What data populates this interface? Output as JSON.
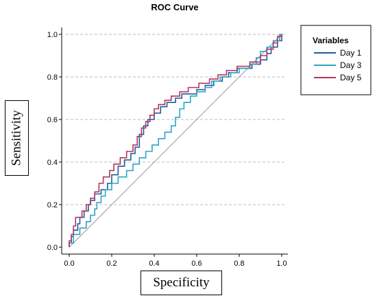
{
  "chart_data": {
    "type": "line",
    "title": "ROC Curve",
    "xlabel": "Specificity",
    "ylabel": "Sensitivity",
    "xlim": [
      0,
      1
    ],
    "ylim": [
      0,
      1
    ],
    "xticks": [
      "0.0",
      "0.2",
      "0.4",
      "0.6",
      "0.8",
      "1.0"
    ],
    "yticks": [
      "0.0",
      "0.2",
      "0.4",
      "0.6",
      "0.8",
      "1.0"
    ],
    "grid": "horizontal dashed",
    "legend": {
      "title": "Variables",
      "placement": "right"
    },
    "reference_line": {
      "from": [
        0,
        0
      ],
      "to": [
        1,
        1
      ]
    },
    "series": [
      {
        "name": "Day 1",
        "color": "#1f5c99",
        "points": [
          [
            0,
            0
          ],
          [
            0,
            0.02
          ],
          [
            0.01,
            0.02
          ],
          [
            0.01,
            0.05
          ],
          [
            0.02,
            0.05
          ],
          [
            0.02,
            0.08
          ],
          [
            0.04,
            0.08
          ],
          [
            0.04,
            0.11
          ],
          [
            0.05,
            0.11
          ],
          [
            0.05,
            0.14
          ],
          [
            0.07,
            0.14
          ],
          [
            0.07,
            0.17
          ],
          [
            0.09,
            0.17
          ],
          [
            0.09,
            0.2
          ],
          [
            0.1,
            0.2
          ],
          [
            0.1,
            0.22
          ],
          [
            0.12,
            0.22
          ],
          [
            0.12,
            0.25
          ],
          [
            0.15,
            0.25
          ],
          [
            0.15,
            0.27
          ],
          [
            0.18,
            0.27
          ],
          [
            0.18,
            0.3
          ],
          [
            0.2,
            0.3
          ],
          [
            0.2,
            0.34
          ],
          [
            0.23,
            0.34
          ],
          [
            0.23,
            0.38
          ],
          [
            0.26,
            0.38
          ],
          [
            0.26,
            0.41
          ],
          [
            0.29,
            0.41
          ],
          [
            0.29,
            0.44
          ],
          [
            0.31,
            0.44
          ],
          [
            0.31,
            0.47
          ],
          [
            0.33,
            0.47
          ],
          [
            0.33,
            0.53
          ],
          [
            0.35,
            0.53
          ],
          [
            0.35,
            0.57
          ],
          [
            0.37,
            0.57
          ],
          [
            0.37,
            0.6
          ],
          [
            0.4,
            0.6
          ],
          [
            0.4,
            0.63
          ],
          [
            0.43,
            0.63
          ],
          [
            0.43,
            0.66
          ],
          [
            0.46,
            0.66
          ],
          [
            0.46,
            0.68
          ],
          [
            0.5,
            0.68
          ],
          [
            0.5,
            0.7
          ],
          [
            0.53,
            0.7
          ],
          [
            0.53,
            0.72
          ],
          [
            0.6,
            0.72
          ],
          [
            0.6,
            0.74
          ],
          [
            0.64,
            0.74
          ],
          [
            0.64,
            0.76
          ],
          [
            0.68,
            0.76
          ],
          [
            0.68,
            0.78
          ],
          [
            0.72,
            0.78
          ],
          [
            0.72,
            0.8
          ],
          [
            0.75,
            0.8
          ],
          [
            0.75,
            0.82
          ],
          [
            0.79,
            0.82
          ],
          [
            0.79,
            0.84
          ],
          [
            0.86,
            0.84
          ],
          [
            0.86,
            0.86
          ],
          [
            0.9,
            0.86
          ],
          [
            0.9,
            0.88
          ],
          [
            0.93,
            0.88
          ],
          [
            0.93,
            0.91
          ],
          [
            0.95,
            0.91
          ],
          [
            0.95,
            0.94
          ],
          [
            0.98,
            0.94
          ],
          [
            0.98,
            0.97
          ],
          [
            1,
            0.97
          ],
          [
            1,
            1
          ]
        ]
      },
      {
        "name": "Day 3",
        "color": "#2aa5c9",
        "points": [
          [
            0,
            0
          ],
          [
            0,
            0.02
          ],
          [
            0.02,
            0.02
          ],
          [
            0.02,
            0.06
          ],
          [
            0.05,
            0.06
          ],
          [
            0.05,
            0.09
          ],
          [
            0.08,
            0.09
          ],
          [
            0.08,
            0.12
          ],
          [
            0.1,
            0.12
          ],
          [
            0.1,
            0.15
          ],
          [
            0.12,
            0.15
          ],
          [
            0.12,
            0.18
          ],
          [
            0.13,
            0.18
          ],
          [
            0.13,
            0.21
          ],
          [
            0.15,
            0.21
          ],
          [
            0.15,
            0.24
          ],
          [
            0.17,
            0.24
          ],
          [
            0.17,
            0.27
          ],
          [
            0.2,
            0.27
          ],
          [
            0.2,
            0.3
          ],
          [
            0.23,
            0.3
          ],
          [
            0.23,
            0.33
          ],
          [
            0.27,
            0.33
          ],
          [
            0.27,
            0.36
          ],
          [
            0.3,
            0.36
          ],
          [
            0.3,
            0.39
          ],
          [
            0.33,
            0.39
          ],
          [
            0.33,
            0.42
          ],
          [
            0.36,
            0.42
          ],
          [
            0.36,
            0.45
          ],
          [
            0.39,
            0.45
          ],
          [
            0.39,
            0.48
          ],
          [
            0.42,
            0.48
          ],
          [
            0.42,
            0.51
          ],
          [
            0.45,
            0.51
          ],
          [
            0.45,
            0.54
          ],
          [
            0.48,
            0.54
          ],
          [
            0.48,
            0.57
          ],
          [
            0.5,
            0.57
          ],
          [
            0.5,
            0.61
          ],
          [
            0.52,
            0.61
          ],
          [
            0.52,
            0.65
          ],
          [
            0.54,
            0.65
          ],
          [
            0.54,
            0.68
          ],
          [
            0.57,
            0.68
          ],
          [
            0.57,
            0.71
          ],
          [
            0.6,
            0.71
          ],
          [
            0.6,
            0.73
          ],
          [
            0.64,
            0.73
          ],
          [
            0.64,
            0.75
          ],
          [
            0.67,
            0.75
          ],
          [
            0.67,
            0.78
          ],
          [
            0.71,
            0.78
          ],
          [
            0.71,
            0.8
          ],
          [
            0.76,
            0.8
          ],
          [
            0.76,
            0.82
          ],
          [
            0.8,
            0.82
          ],
          [
            0.8,
            0.84
          ],
          [
            0.85,
            0.84
          ],
          [
            0.85,
            0.86
          ],
          [
            0.88,
            0.86
          ],
          [
            0.88,
            0.89
          ],
          [
            0.9,
            0.89
          ],
          [
            0.9,
            0.92
          ],
          [
            0.93,
            0.92
          ],
          [
            0.93,
            0.94
          ],
          [
            0.96,
            0.94
          ],
          [
            0.96,
            0.97
          ],
          [
            0.99,
            0.97
          ],
          [
            0.99,
            1
          ],
          [
            1,
            1
          ]
        ]
      },
      {
        "name": "Day 5",
        "color": "#b5335f",
        "points": [
          [
            0,
            0
          ],
          [
            0,
            0.03
          ],
          [
            0.01,
            0.03
          ],
          [
            0.01,
            0.06
          ],
          [
            0.02,
            0.06
          ],
          [
            0.02,
            0.1
          ],
          [
            0.03,
            0.1
          ],
          [
            0.03,
            0.14
          ],
          [
            0.06,
            0.14
          ],
          [
            0.06,
            0.17
          ],
          [
            0.08,
            0.17
          ],
          [
            0.08,
            0.2
          ],
          [
            0.1,
            0.2
          ],
          [
            0.1,
            0.23
          ],
          [
            0.12,
            0.23
          ],
          [
            0.12,
            0.26
          ],
          [
            0.14,
            0.26
          ],
          [
            0.14,
            0.3
          ],
          [
            0.16,
            0.3
          ],
          [
            0.16,
            0.33
          ],
          [
            0.19,
            0.33
          ],
          [
            0.19,
            0.36
          ],
          [
            0.21,
            0.36
          ],
          [
            0.21,
            0.39
          ],
          [
            0.24,
            0.39
          ],
          [
            0.24,
            0.42
          ],
          [
            0.27,
            0.42
          ],
          [
            0.27,
            0.45
          ],
          [
            0.3,
            0.45
          ],
          [
            0.3,
            0.48
          ],
          [
            0.32,
            0.48
          ],
          [
            0.32,
            0.52
          ],
          [
            0.34,
            0.52
          ],
          [
            0.34,
            0.56
          ],
          [
            0.36,
            0.56
          ],
          [
            0.36,
            0.59
          ],
          [
            0.38,
            0.59
          ],
          [
            0.38,
            0.62
          ],
          [
            0.4,
            0.62
          ],
          [
            0.4,
            0.65
          ],
          [
            0.42,
            0.65
          ],
          [
            0.42,
            0.67
          ],
          [
            0.45,
            0.67
          ],
          [
            0.45,
            0.69
          ],
          [
            0.48,
            0.69
          ],
          [
            0.48,
            0.71
          ],
          [
            0.52,
            0.71
          ],
          [
            0.52,
            0.73
          ],
          [
            0.56,
            0.73
          ],
          [
            0.56,
            0.75
          ],
          [
            0.61,
            0.75
          ],
          [
            0.61,
            0.77
          ],
          [
            0.66,
            0.77
          ],
          [
            0.66,
            0.79
          ],
          [
            0.7,
            0.79
          ],
          [
            0.7,
            0.81
          ],
          [
            0.74,
            0.81
          ],
          [
            0.74,
            0.83
          ],
          [
            0.79,
            0.83
          ],
          [
            0.79,
            0.85
          ],
          [
            0.85,
            0.85
          ],
          [
            0.85,
            0.87
          ],
          [
            0.9,
            0.87
          ],
          [
            0.9,
            0.9
          ],
          [
            0.93,
            0.9
          ],
          [
            0.93,
            0.93
          ],
          [
            0.96,
            0.93
          ],
          [
            0.96,
            0.96
          ],
          [
            0.98,
            0.96
          ],
          [
            0.98,
            0.99
          ],
          [
            1,
            0.99
          ],
          [
            1,
            1
          ]
        ]
      }
    ]
  }
}
